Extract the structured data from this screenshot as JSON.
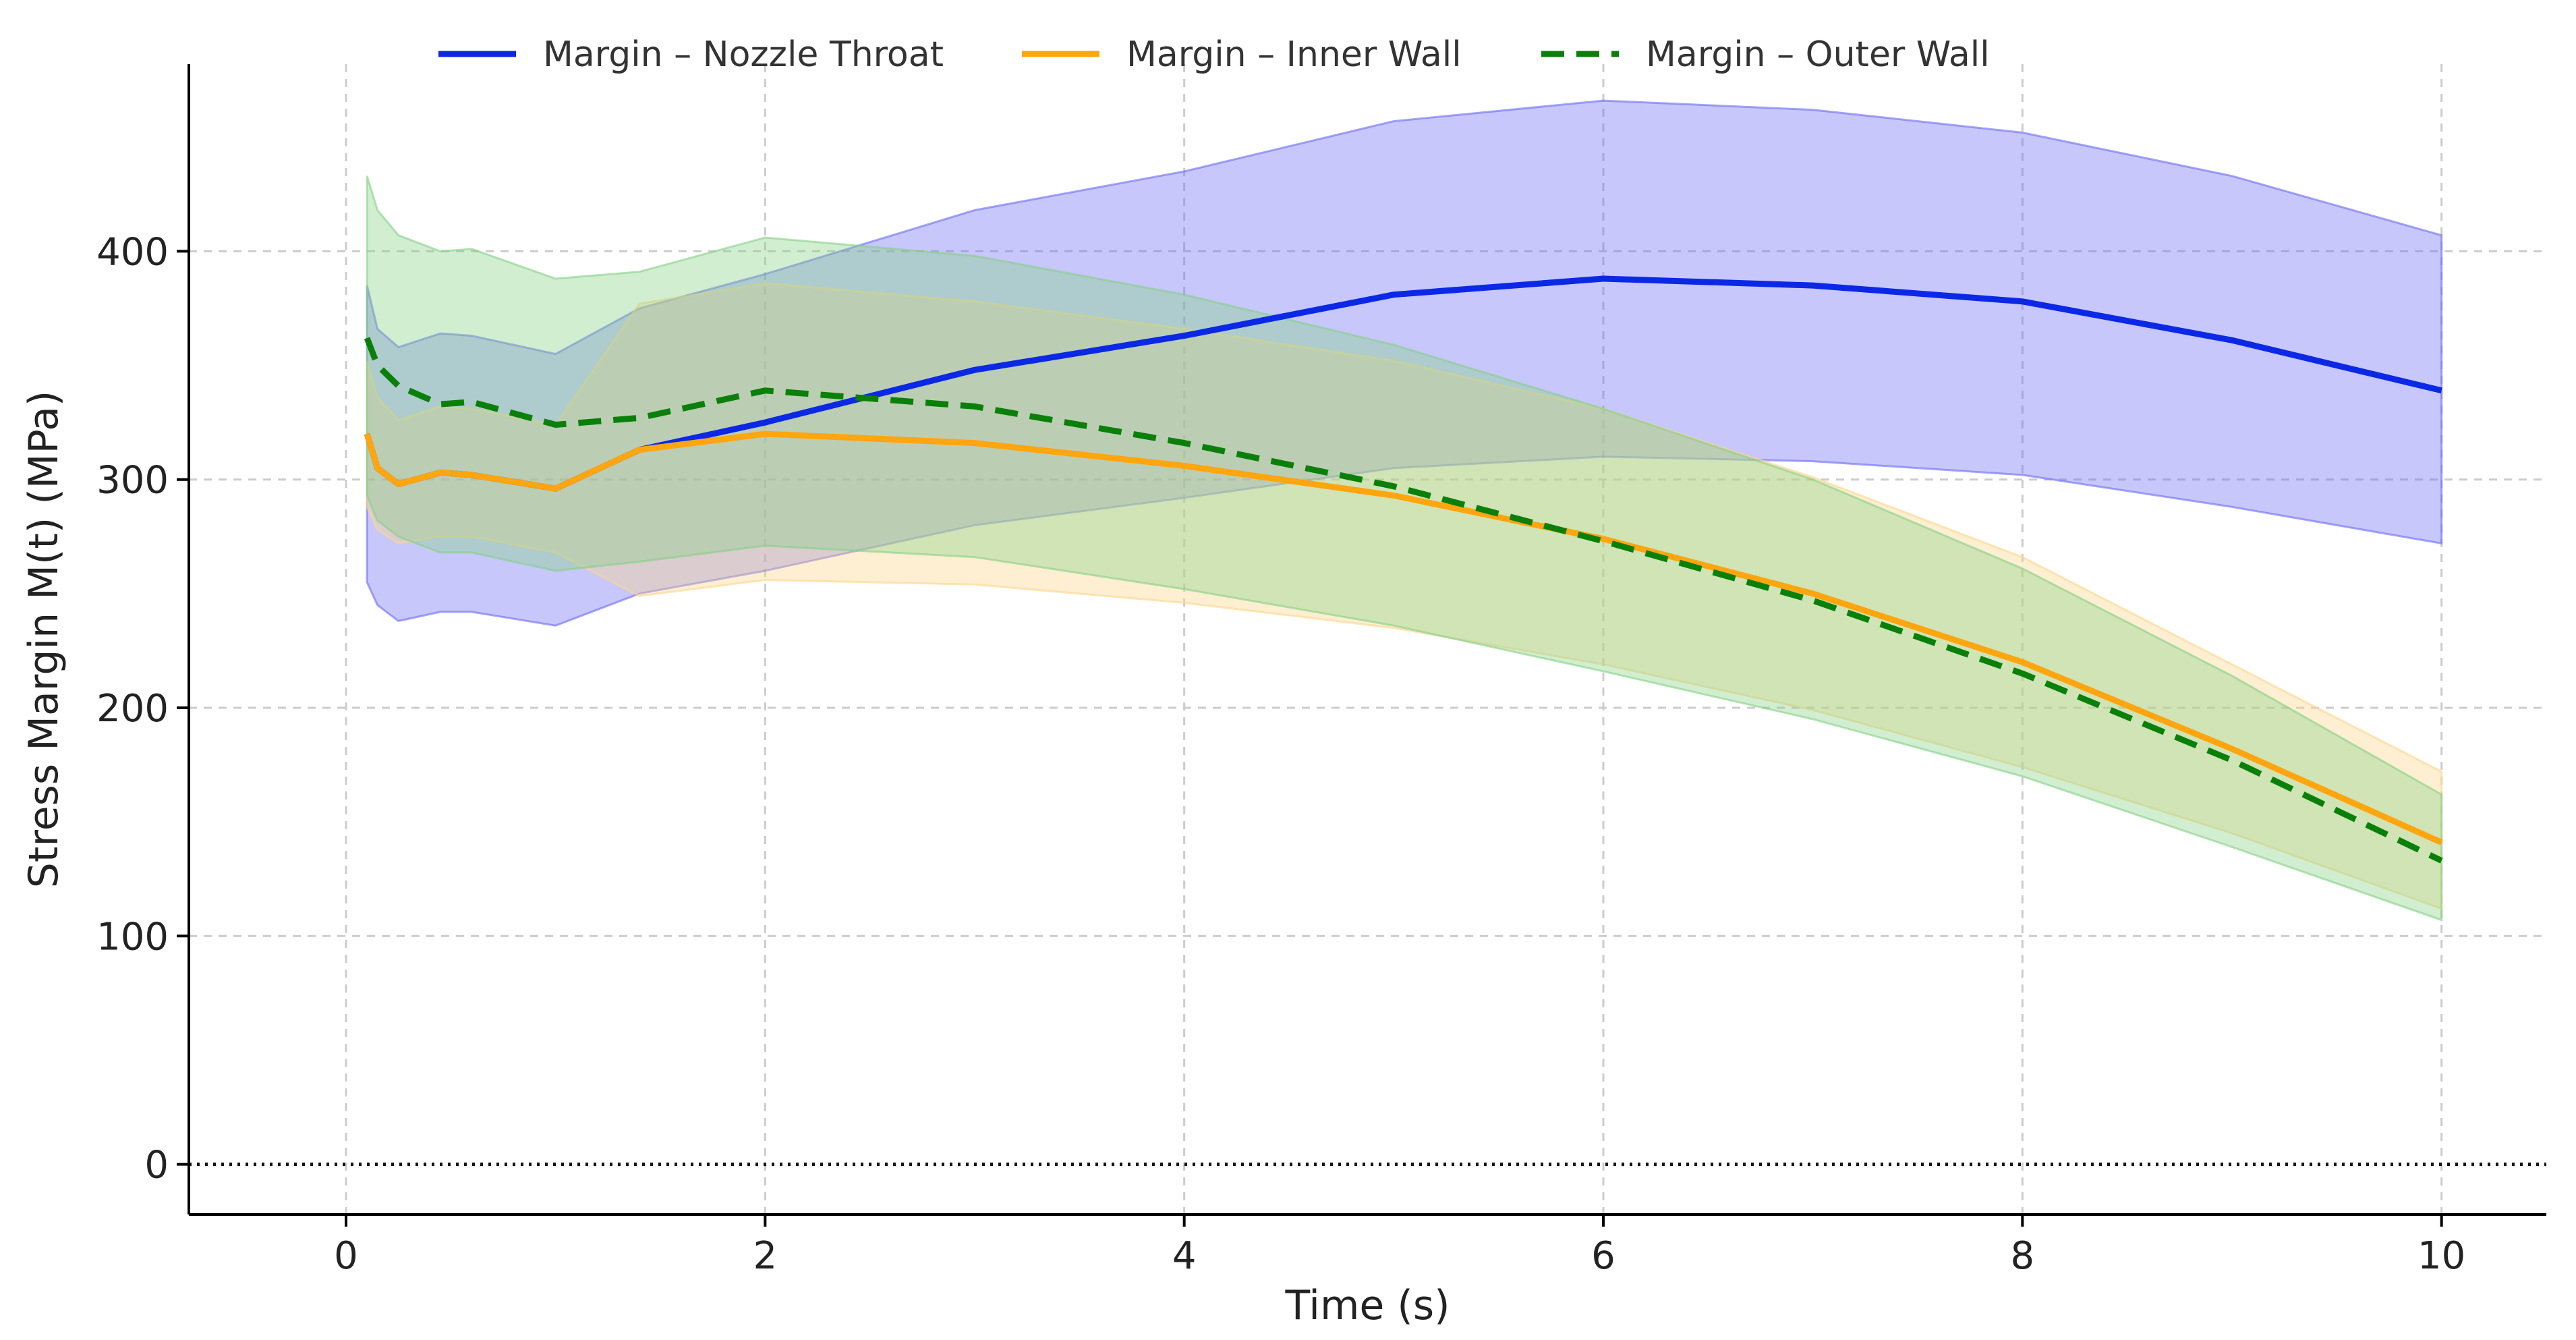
{
  "chart_data": {
    "type": "line",
    "title": "",
    "xlabel": "Time (s)",
    "ylabel": "Stress Margin M(t) (MPa)",
    "xlim": [
      -0.75,
      10.5
    ],
    "ylim": [
      -22,
      482
    ],
    "xticks": [
      0,
      2,
      4,
      6,
      8,
      10
    ],
    "yticks": [
      0,
      100,
      200,
      300,
      400
    ],
    "grid": true,
    "legend_position": "top-center",
    "reference_line": {
      "y": 0,
      "style": "dotted"
    },
    "series": [
      {
        "name": "Margin – Nozzle Throat",
        "color": "#0a28e6",
        "band_color": "#6b6bf5",
        "line_style": "solid",
        "x": [
          0.1,
          0.15,
          0.25,
          0.45,
          0.6,
          1.0,
          1.4,
          2.0,
          3.0,
          4.0,
          5.0,
          6.0,
          7.0,
          8.0,
          9.0,
          10.0
        ],
        "mean": [
          320,
          305,
          298,
          303,
          302,
          296,
          313,
          325,
          348,
          363,
          381,
          388,
          385,
          378,
          361,
          339
        ],
        "lower": [
          255,
          245,
          238,
          242,
          242,
          236,
          250,
          260,
          280,
          292,
          305,
          310,
          308,
          302,
          288,
          272
        ],
        "upper": [
          385,
          366,
          358,
          364,
          363,
          355,
          375,
          390,
          418,
          435,
          457,
          466,
          462,
          452,
          433,
          407
        ]
      },
      {
        "name": "Margin – Inner Wall",
        "color": "#ffa50f",
        "band_color": "#fcd58a",
        "line_style": "solid",
        "x": [
          0.1,
          0.15,
          0.25,
          0.45,
          0.6,
          1.0,
          1.4,
          2.0,
          3.0,
          4.0,
          5.0,
          6.0,
          7.0,
          8.0,
          9.0,
          10.0
        ],
        "mean": [
          320,
          305,
          298,
          303,
          302,
          296,
          313,
          320,
          316,
          306,
          293,
          274,
          250,
          220,
          182,
          141
        ],
        "lower": [
          288,
          278,
          272,
          275,
          275,
          268,
          249,
          256,
          254,
          246,
          235,
          219,
          199,
          174,
          145,
          112
        ],
        "upper": [
          352,
          336,
          326,
          332,
          331,
          324,
          377,
          386,
          378,
          366,
          352,
          331,
          301,
          266,
          219,
          172
        ]
      },
      {
        "name": "Margin – Outer Wall",
        "color": "#0a800a",
        "band_color": "#86d186",
        "line_style": "dashed",
        "x": [
          0.1,
          0.15,
          0.25,
          0.45,
          0.6,
          1.0,
          1.4,
          2.0,
          3.0,
          4.0,
          5.0,
          6.0,
          7.0,
          8.0,
          9.0,
          10.0
        ],
        "mean": [
          362,
          350,
          341,
          333,
          334,
          324,
          327,
          339,
          332,
          316,
          297,
          273,
          247,
          215,
          177,
          133
        ],
        "lower": [
          293,
          282,
          275,
          268,
          268,
          260,
          264,
          271,
          266,
          252,
          236,
          216,
          195,
          170,
          139,
          107
        ],
        "upper": [
          433,
          418,
          407,
          400,
          401,
          388,
          391,
          406,
          398,
          381,
          359,
          331,
          300,
          261,
          214,
          162
        ]
      }
    ]
  }
}
